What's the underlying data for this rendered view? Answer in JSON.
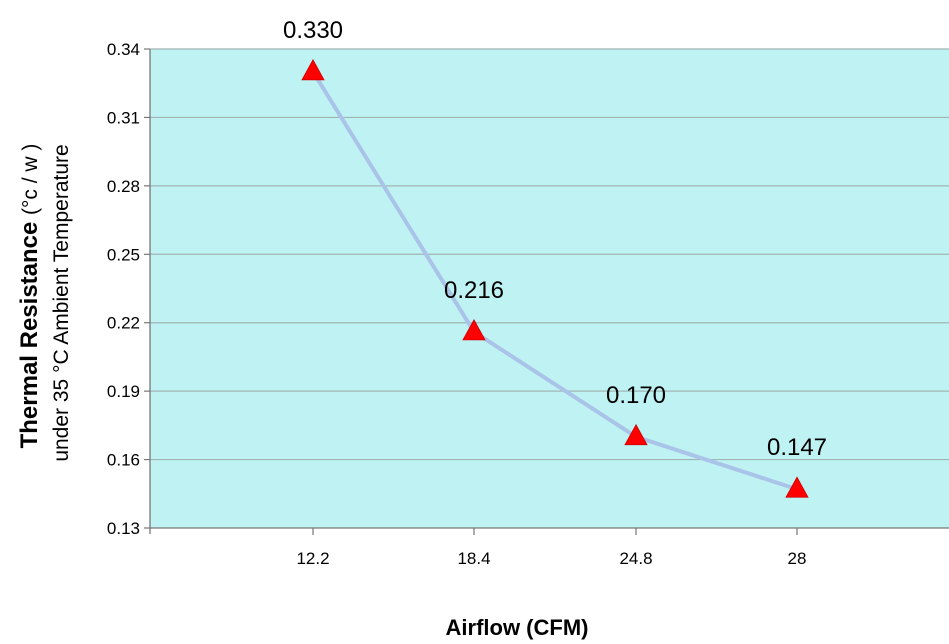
{
  "chart_data": {
    "type": "line",
    "categories": [
      "12.2",
      "18.4",
      "24.8",
      "28"
    ],
    "values": [
      0.33,
      0.216,
      0.17,
      0.147
    ],
    "data_labels": [
      "0.330",
      "0.216",
      "0.170",
      "0.147"
    ],
    "xlabel": "Airflow (CFM)",
    "ylabel_bold": "Thermal Resistance",
    "ylabel_unit": "(°c / w )",
    "ylabel_line2": "under 35 °C Ambient Temperature",
    "ylim": [
      0.13,
      0.34
    ],
    "yticks": [
      "0.34",
      "0.31",
      "0.28",
      "0.25",
      "0.22",
      "0.19",
      "0.16",
      "0.13"
    ],
    "ytick_values": [
      0.34,
      0.31,
      0.28,
      0.25,
      0.22,
      0.19,
      0.16,
      0.13
    ],
    "grid": true,
    "marker": "triangle",
    "colors": {
      "plot_background": "#bff2f2",
      "line": "#a9c4e8",
      "marker": "#ff0000",
      "grid": "#a0b4b4",
      "axis": "#777777"
    }
  }
}
